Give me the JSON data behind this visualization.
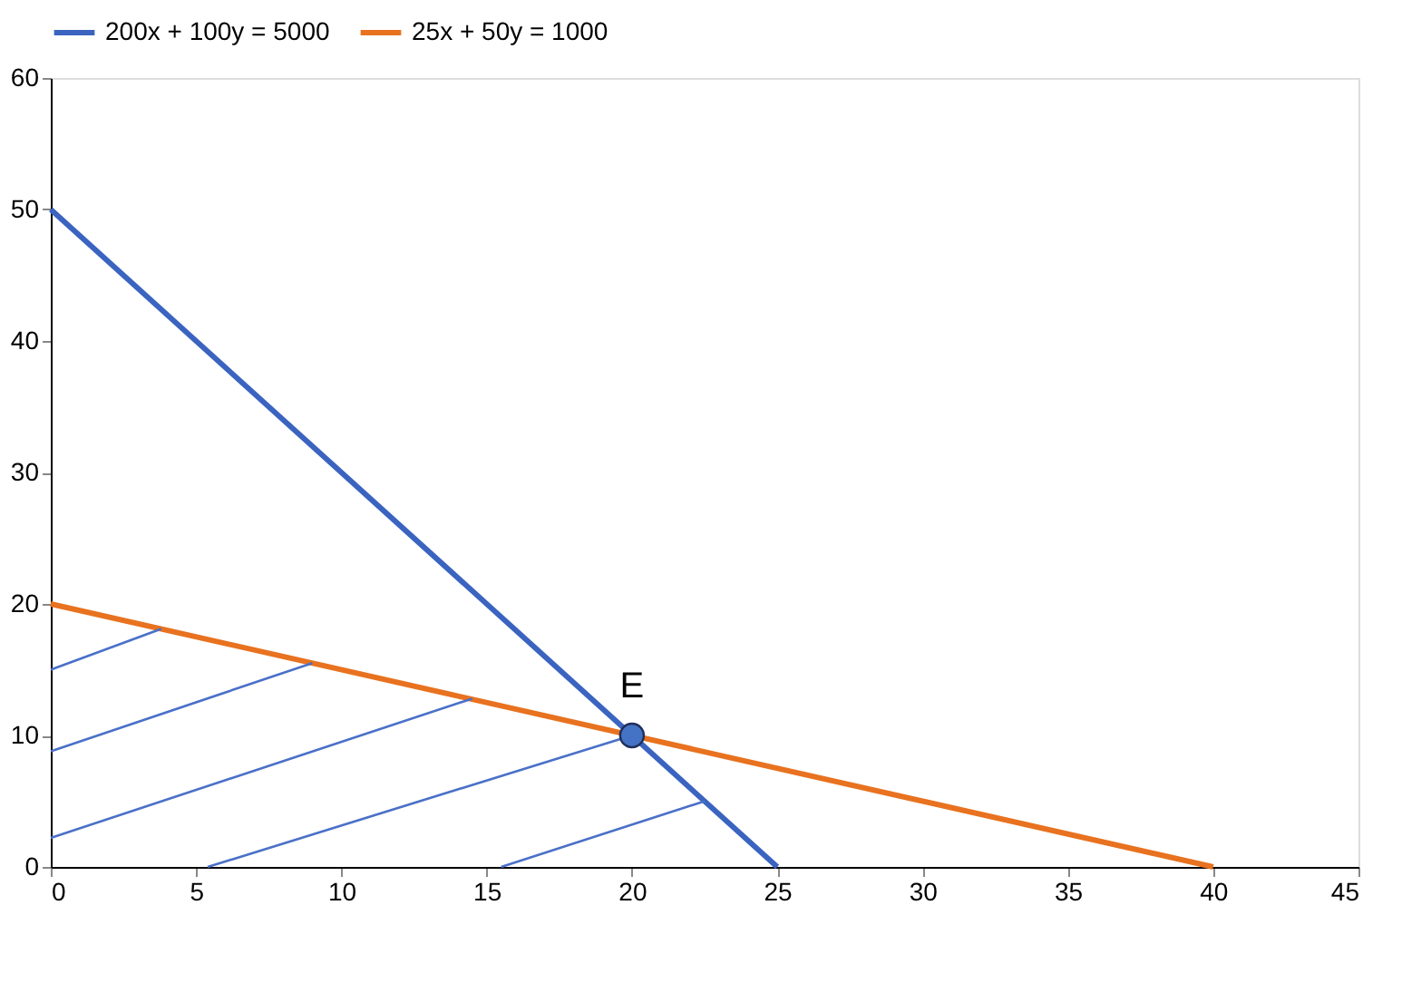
{
  "chart_data": {
    "type": "line",
    "xlim": [
      0,
      45
    ],
    "ylim": [
      0,
      60
    ],
    "xticks": [
      0,
      5,
      10,
      15,
      20,
      25,
      30,
      35,
      40,
      45
    ],
    "yticks": [
      0,
      10,
      20,
      30,
      40,
      50,
      60
    ],
    "grid": false,
    "legend": "top",
    "marker": "none",
    "line_style": "solid",
    "series": [
      {
        "name": "200x + 100y = 5000",
        "color": "#3b64c0",
        "x": [
          0,
          25
        ],
        "values": [
          50,
          0
        ]
      },
      {
        "name": "25x + 50y = 1000",
        "color": "#e8721f",
        "x": [
          0,
          40
        ],
        "values": [
          20,
          0
        ]
      },
      {
        "color": "#4a70c8",
        "x": [
          0,
          3.8
        ],
        "values": [
          15,
          18.1
        ]
      },
      {
        "color": "#4a70c8",
        "x": [
          0,
          9
        ],
        "values": [
          8.8,
          15.5
        ]
      },
      {
        "color": "#4a70c8",
        "x": [
          0,
          14.5
        ],
        "values": [
          2.2,
          12.8
        ]
      },
      {
        "color": "#4a70c8",
        "x": [
          5.4,
          20
        ],
        "values": [
          0,
          10
        ]
      },
      {
        "color": "#4a70c8",
        "x": [
          15.5,
          22.5
        ],
        "values": [
          0,
          5
        ]
      },
      {
        "type": "scatter",
        "color": "#4472c4",
        "x": [
          20
        ],
        "values": [
          10
        ],
        "marker": "circle"
      }
    ],
    "annotations": [
      {
        "text": "E",
        "x": 20,
        "y": 10
      }
    ]
  }
}
